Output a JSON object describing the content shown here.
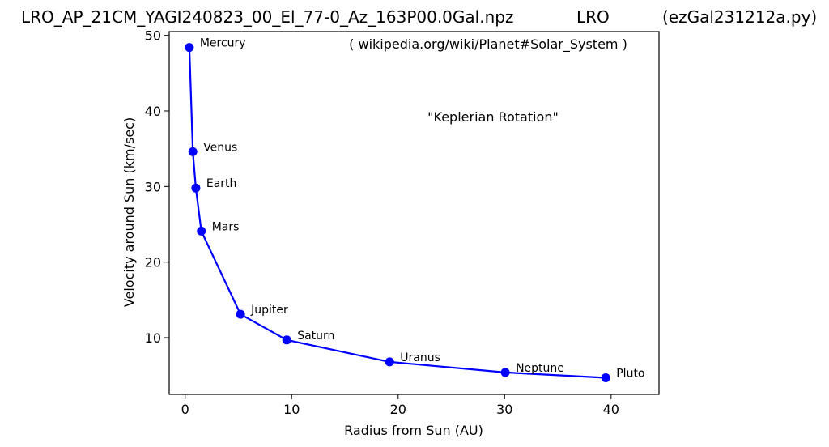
{
  "header": {
    "left": "LRO_AP_21CM_YAGI240823_00_El_77-0_Az_163P00.0Gal.npz",
    "middle": "LRO",
    "right": "(ezGal231212a.py)"
  },
  "chart_data": {
    "type": "line",
    "title": "",
    "xlabel": "Radius from Sun (AU)",
    "ylabel": "Velocity around Sun (km/sec)",
    "xlim": [
      -1.5,
      44.5
    ],
    "ylim": [
      2.5,
      50.5
    ],
    "xticks": [
      0,
      10,
      20,
      30,
      40
    ],
    "yticks": [
      10,
      20,
      30,
      40,
      50
    ],
    "grid": false,
    "line_color": "#0000ff",
    "annotations": [
      "( wikipedia.org/wiki/Planet#Solar_System )",
      "\"Keplerian Rotation\""
    ],
    "points": [
      {
        "label": "Mercury",
        "x": 0.39,
        "y": 48.4
      },
      {
        "label": "Venus",
        "x": 0.72,
        "y": 34.6
      },
      {
        "label": "Earth",
        "x": 1.0,
        "y": 29.8
      },
      {
        "label": "Mars",
        "x": 1.52,
        "y": 24.1
      },
      {
        "label": "Jupiter",
        "x": 5.2,
        "y": 13.1
      },
      {
        "label": "Saturn",
        "x": 9.54,
        "y": 9.7
      },
      {
        "label": "Uranus",
        "x": 19.2,
        "y": 6.8
      },
      {
        "label": "Neptune",
        "x": 30.06,
        "y": 5.4
      },
      {
        "label": "Pluto",
        "x": 39.5,
        "y": 4.7
      }
    ]
  }
}
